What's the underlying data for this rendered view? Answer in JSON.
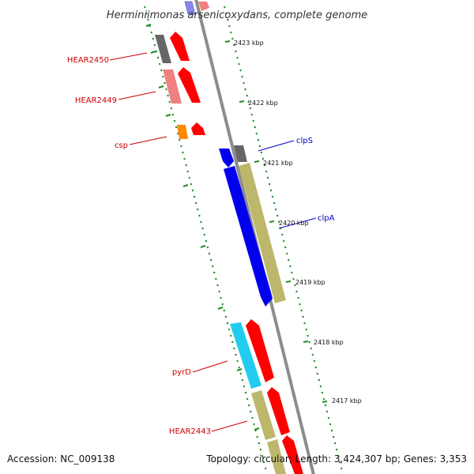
{
  "title": "Herminiimonas arsenicoxydans, complete genome",
  "accession_text": "Accession: NC_009138",
  "topology_text": "Topology: circular; Length: 3,424,307 bp; Genes: 3,353",
  "colors": {
    "backbone": "#8c8c8c",
    "tick": "#228b22",
    "label_minus_strand": "#cc0000",
    "label_plus_strand": "#0000cc",
    "red_gene": "#ff0000",
    "pink_gene": "#f08080",
    "grey_gene": "#666666",
    "orange_gene": "#ff8800",
    "blue_gene": "#0000ee",
    "cyan_gene": "#22ccee",
    "khaki_gene": "#bdb76b"
  },
  "kbp_labels": [
    "2423 kbp",
    "2422 kbp",
    "2421 kbp",
    "2420 kbp",
    "2419 kbp",
    "2418 kbp",
    "2417 kbp"
  ],
  "gene_labels": [
    {
      "id": "HEAR2450",
      "text": "HEAR2450",
      "strand": "minus"
    },
    {
      "id": "HEAR2449",
      "text": "HEAR2449",
      "strand": "minus"
    },
    {
      "id": "csp",
      "text": "csp",
      "strand": "minus"
    },
    {
      "id": "clpS",
      "text": "clpS",
      "strand": "plus"
    },
    {
      "id": "clpA",
      "text": "clpA",
      "strand": "plus"
    },
    {
      "id": "pyrD",
      "text": "pyrD",
      "strand": "minus"
    },
    {
      "id": "HEAR2443",
      "text": "HEAR2443",
      "strand": "minus"
    }
  ]
}
